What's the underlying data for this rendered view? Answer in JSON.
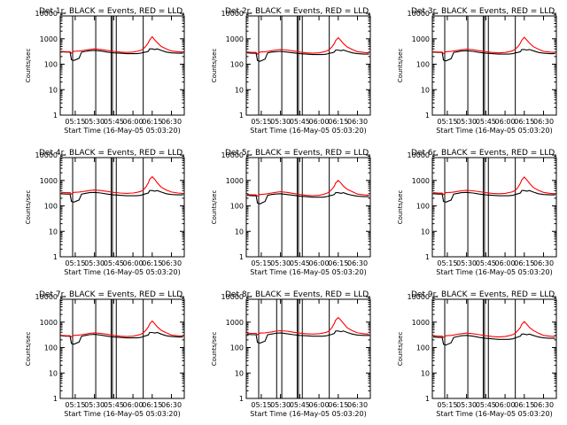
{
  "figure": {
    "ylabel": "Counts/sec",
    "yticks": [
      "1",
      "10",
      "100",
      "1000",
      "10000"
    ],
    "xticks": [
      "05:15",
      "05:30",
      "05:45",
      "06:00",
      "06:15",
      "06:30"
    ],
    "xlabel": "Start Time (16-May-05 05:03:20)",
    "colors": {
      "black_series": "#000000",
      "red_series": "#ff0000",
      "axes": "#000000",
      "background": "#ffffff"
    }
  },
  "chart_data": [
    {
      "type": "line",
      "title": "Det 1r, BLACK = Events, RED = LLD",
      "xlabel": "Start Time (16-May-05 05:03:20)",
      "ylabel": "Counts/sec",
      "yscale": "log",
      "ylim": [
        1,
        15000
      ],
      "xlim": [
        "05:03:20",
        "06:40"
      ],
      "x": [
        "05:04",
        "05:08",
        "05:11",
        "05:12",
        "05:14",
        "05:18",
        "05:20",
        "05:23",
        "05:26",
        "05:30",
        "05:35",
        "05:40",
        "05:45",
        "05:50",
        "05:55",
        "06:00",
        "06:03",
        "06:06",
        "06:08",
        "06:10",
        "06:12",
        "06:13",
        "06:15",
        "06:17",
        "06:19",
        "06:22",
        "06:26",
        "06:30",
        "06:35",
        "06:39"
      ],
      "vlines": [
        "05:13",
        "05:31",
        "05:43",
        "05:44",
        "05:47",
        "06:08"
      ],
      "series": [
        {
          "name": "BLACK",
          "values": [
            310,
            300,
            300,
            150,
            140,
            170,
            300,
            320,
            340,
            350,
            330,
            300,
            280,
            270,
            260,
            260,
            260,
            270,
            290,
            300,
            320,
            400,
            400,
            380,
            400,
            350,
            300,
            280,
            270,
            270
          ]
        },
        {
          "name": "RED",
          "values": [
            320,
            310,
            310,
            270,
            320,
            330,
            340,
            360,
            380,
            400,
            380,
            350,
            320,
            300,
            290,
            300,
            320,
            350,
            400,
            500,
            700,
            900,
            1200,
            900,
            700,
            500,
            400,
            330,
            310,
            300
          ]
        }
      ]
    },
    {
      "type": "line",
      "title": "Det 2r, BLACK = Events, RED = LLD",
      "xlabel": "Start Time (16-May-05 05:03:20)",
      "ylabel": "Counts/sec",
      "yscale": "log",
      "ylim": [
        1,
        15000
      ],
      "xlim": [
        "05:03:20",
        "06:40"
      ],
      "x": [
        "05:04",
        "05:08",
        "05:11",
        "05:12",
        "05:14",
        "05:18",
        "05:20",
        "05:23",
        "05:26",
        "05:30",
        "05:35",
        "05:40",
        "05:45",
        "05:50",
        "05:55",
        "06:00",
        "06:03",
        "06:06",
        "06:08",
        "06:10",
        "06:12",
        "06:13",
        "06:15",
        "06:17",
        "06:19",
        "06:22",
        "06:26",
        "06:30",
        "06:35",
        "06:39"
      ],
      "vlines": [
        "05:13",
        "05:31",
        "05:43",
        "05:44",
        "05:47",
        "06:08"
      ],
      "series": [
        {
          "name": "BLACK",
          "values": [
            280,
            270,
            270,
            140,
            130,
            160,
            280,
            300,
            310,
            320,
            300,
            280,
            260,
            250,
            240,
            240,
            240,
            250,
            270,
            280,
            300,
            360,
            360,
            340,
            360,
            320,
            280,
            260,
            250,
            250
          ]
        },
        {
          "name": "RED",
          "values": [
            300,
            290,
            290,
            250,
            300,
            310,
            320,
            340,
            360,
            380,
            360,
            330,
            300,
            280,
            270,
            280,
            300,
            330,
            380,
            480,
            650,
            850,
            1100,
            850,
            650,
            480,
            380,
            310,
            290,
            280
          ]
        }
      ]
    },
    {
      "type": "line",
      "title": "Det 3r, BLACK = Events, RED = LLD",
      "xlabel": "Start Time (16-May-05 05:03:20)",
      "ylabel": "Counts/sec",
      "yscale": "log",
      "ylim": [
        1,
        15000
      ],
      "xlim": [
        "05:03:20",
        "06:40"
      ],
      "x": [
        "05:04",
        "05:08",
        "05:11",
        "05:12",
        "05:14",
        "05:18",
        "05:20",
        "05:23",
        "05:26",
        "05:30",
        "05:35",
        "05:40",
        "05:45",
        "05:50",
        "05:55",
        "06:00",
        "06:03",
        "06:06",
        "06:08",
        "06:10",
        "06:12",
        "06:13",
        "06:15",
        "06:17",
        "06:19",
        "06:22",
        "06:26",
        "06:30",
        "06:35",
        "06:39"
      ],
      "vlines": [
        "05:13",
        "05:31",
        "05:43",
        "05:44",
        "05:47",
        "06:08"
      ],
      "series": [
        {
          "name": "BLACK",
          "values": [
            300,
            290,
            290,
            145,
            135,
            165,
            290,
            310,
            330,
            340,
            320,
            290,
            270,
            260,
            250,
            250,
            250,
            260,
            280,
            290,
            310,
            380,
            380,
            360,
            380,
            340,
            290,
            270,
            260,
            260
          ]
        },
        {
          "name": "RED",
          "values": [
            310,
            300,
            300,
            260,
            310,
            320,
            330,
            350,
            370,
            390,
            370,
            340,
            310,
            290,
            280,
            290,
            310,
            340,
            390,
            490,
            680,
            880,
            1150,
            880,
            680,
            490,
            390,
            320,
            300,
            290
          ]
        }
      ]
    },
    {
      "type": "line",
      "title": "Det 4r, BLACK = Events, RED = LLD",
      "xlabel": "Start Time (16-May-05 05:03:20)",
      "ylabel": "Counts/sec",
      "yscale": "log",
      "ylim": [
        1,
        15000
      ],
      "xlim": [
        "05:03:20",
        "06:40"
      ],
      "x": [
        "05:04",
        "05:08",
        "05:11",
        "05:12",
        "05:14",
        "05:18",
        "05:20",
        "05:23",
        "05:26",
        "05:30",
        "05:35",
        "05:40",
        "05:45",
        "05:50",
        "05:55",
        "06:00",
        "06:03",
        "06:06",
        "06:08",
        "06:10",
        "06:12",
        "06:13",
        "06:15",
        "06:17",
        "06:19",
        "06:22",
        "06:26",
        "06:30",
        "06:35",
        "06:39"
      ],
      "vlines": [
        "05:13",
        "05:31",
        "05:43",
        "05:44",
        "05:47",
        "06:08"
      ],
      "series": [
        {
          "name": "BLACK",
          "values": [
            300,
            290,
            290,
            150,
            140,
            170,
            290,
            310,
            330,
            340,
            320,
            290,
            270,
            260,
            250,
            250,
            250,
            260,
            280,
            300,
            320,
            400,
            400,
            380,
            400,
            350,
            300,
            280,
            270,
            270
          ]
        },
        {
          "name": "RED",
          "values": [
            340,
            330,
            330,
            290,
            340,
            350,
            360,
            380,
            400,
            420,
            400,
            370,
            340,
            320,
            310,
            320,
            340,
            370,
            420,
            550,
            800,
            1100,
            1400,
            1100,
            800,
            550,
            420,
            350,
            320,
            310
          ]
        }
      ]
    },
    {
      "type": "line",
      "title": "Det 5r, BLACK = Events, RED = LLD",
      "xlabel": "Start Time (16-May-05 05:03:20)",
      "ylabel": "Counts/sec",
      "yscale": "log",
      "ylim": [
        1,
        15000
      ],
      "xlim": [
        "05:03:20",
        "06:40"
      ],
      "x": [
        "05:04",
        "05:08",
        "05:11",
        "05:12",
        "05:14",
        "05:18",
        "05:20",
        "05:23",
        "05:26",
        "05:30",
        "05:35",
        "05:40",
        "05:45",
        "05:50",
        "05:55",
        "06:00",
        "06:03",
        "06:06",
        "06:08",
        "06:10",
        "06:12",
        "06:13",
        "06:15",
        "06:17",
        "06:19",
        "06:22",
        "06:26",
        "06:30",
        "06:35",
        "06:39"
      ],
      "vlines": [
        "05:13",
        "05:31",
        "05:43",
        "05:44",
        "05:47",
        "06:08"
      ],
      "series": [
        {
          "name": "BLACK",
          "values": [
            260,
            250,
            250,
            130,
            120,
            150,
            260,
            280,
            290,
            300,
            280,
            260,
            240,
            230,
            220,
            220,
            220,
            230,
            250,
            260,
            280,
            330,
            330,
            310,
            330,
            290,
            260,
            240,
            230,
            230
          ]
        },
        {
          "name": "RED",
          "values": [
            280,
            270,
            270,
            240,
            280,
            290,
            300,
            320,
            340,
            360,
            340,
            310,
            280,
            260,
            250,
            260,
            280,
            310,
            360,
            450,
            600,
            800,
            1000,
            800,
            600,
            450,
            360,
            290,
            270,
            260
          ]
        }
      ]
    },
    {
      "type": "line",
      "title": "Det 6r, BLACK = Events, RED = LLD",
      "xlabel": "Start Time (16-May-05 05:03:20)",
      "ylabel": "Counts/sec",
      "yscale": "log",
      "ylim": [
        1,
        15000
      ],
      "xlim": [
        "05:03:20",
        "06:40"
      ],
      "x": [
        "05:04",
        "05:08",
        "05:11",
        "05:12",
        "05:14",
        "05:18",
        "05:20",
        "05:23",
        "05:26",
        "05:30",
        "05:35",
        "05:40",
        "05:45",
        "05:50",
        "05:55",
        "06:00",
        "06:03",
        "06:06",
        "06:08",
        "06:10",
        "06:12",
        "06:13",
        "06:15",
        "06:17",
        "06:19",
        "06:22",
        "06:26",
        "06:30",
        "06:35",
        "06:39"
      ],
      "vlines": [
        "05:13",
        "05:31",
        "05:43",
        "05:44",
        "05:47",
        "06:08"
      ],
      "series": [
        {
          "name": "BLACK",
          "values": [
            300,
            290,
            290,
            150,
            140,
            170,
            290,
            310,
            330,
            340,
            320,
            290,
            270,
            260,
            250,
            250,
            250,
            260,
            280,
            300,
            320,
            400,
            400,
            380,
            400,
            350,
            300,
            280,
            270,
            270
          ]
        },
        {
          "name": "RED",
          "values": [
            330,
            320,
            320,
            280,
            330,
            340,
            350,
            370,
            390,
            410,
            390,
            360,
            330,
            310,
            300,
            310,
            330,
            360,
            410,
            530,
            780,
            1050,
            1350,
            1050,
            780,
            530,
            410,
            340,
            310,
            300
          ]
        }
      ]
    },
    {
      "type": "line",
      "title": "Det 7r, BLACK = Events, RED = LLD",
      "xlabel": "Start Time (16-May-05 05:03:20)",
      "ylabel": "Counts/sec",
      "yscale": "log",
      "ylim": [
        1,
        15000
      ],
      "xlim": [
        "05:03:20",
        "06:40"
      ],
      "x": [
        "05:04",
        "05:08",
        "05:11",
        "05:12",
        "05:14",
        "05:18",
        "05:20",
        "05:23",
        "05:26",
        "05:30",
        "05:35",
        "05:40",
        "05:45",
        "05:50",
        "05:55",
        "06:00",
        "06:03",
        "06:06",
        "06:08",
        "06:10",
        "06:12",
        "06:13",
        "06:15",
        "06:17",
        "06:19",
        "06:22",
        "06:26",
        "06:30",
        "06:35",
        "06:39"
      ],
      "vlines": [
        "05:13",
        "05:31",
        "05:43",
        "05:44",
        "05:47",
        "06:08"
      ],
      "series": [
        {
          "name": "BLACK",
          "values": [
            290,
            280,
            280,
            145,
            135,
            165,
            280,
            300,
            320,
            330,
            310,
            280,
            260,
            250,
            240,
            240,
            240,
            250,
            270,
            290,
            310,
            390,
            390,
            370,
            390,
            340,
            290,
            270,
            260,
            260
          ]
        },
        {
          "name": "RED",
          "values": [
            300,
            290,
            290,
            260,
            300,
            310,
            320,
            340,
            360,
            380,
            360,
            330,
            300,
            280,
            270,
            280,
            300,
            330,
            380,
            480,
            650,
            850,
            1100,
            850,
            650,
            480,
            380,
            310,
            290,
            280
          ]
        }
      ]
    },
    {
      "type": "line",
      "title": "Det 8r, BLACK = Events, RED = LLD",
      "xlabel": "Start Time (16-May-05 05:03:20)",
      "ylabel": "Counts/sec",
      "yscale": "log",
      "ylim": [
        1,
        15000
      ],
      "xlim": [
        "05:03:20",
        "06:40"
      ],
      "x": [
        "05:04",
        "05:08",
        "05:11",
        "05:12",
        "05:14",
        "05:18",
        "05:20",
        "05:23",
        "05:26",
        "05:30",
        "05:35",
        "05:40",
        "05:45",
        "05:50",
        "05:55",
        "06:00",
        "06:03",
        "06:06",
        "06:08",
        "06:10",
        "06:12",
        "06:13",
        "06:15",
        "06:17",
        "06:19",
        "06:22",
        "06:26",
        "06:30",
        "06:35",
        "06:39"
      ],
      "vlines": [
        "05:13",
        "05:27",
        "05:31",
        "05:43",
        "05:44",
        "05:47",
        "06:08"
      ],
      "series": [
        {
          "name": "BLACK",
          "values": [
            330,
            320,
            320,
            160,
            150,
            180,
            320,
            340,
            360,
            380,
            350,
            320,
            300,
            290,
            280,
            280,
            280,
            290,
            310,
            330,
            360,
            450,
            450,
            420,
            450,
            390,
            340,
            310,
            300,
            300
          ]
        },
        {
          "name": "RED",
          "values": [
            370,
            360,
            360,
            320,
            370,
            380,
            390,
            410,
            440,
            460,
            440,
            400,
            370,
            350,
            340,
            350,
            370,
            400,
            460,
            600,
            900,
            1200,
            1500,
            1200,
            900,
            600,
            460,
            380,
            350,
            340
          ]
        }
      ]
    },
    {
      "type": "line",
      "title": "Det 9r, BLACK = Events, RED = LLD",
      "xlabel": "Start Time (16-May-05 05:03:20)",
      "ylabel": "Counts/sec",
      "yscale": "log",
      "ylim": [
        1,
        15000
      ],
      "xlim": [
        "05:03:20",
        "06:40"
      ],
      "x": [
        "05:04",
        "05:08",
        "05:11",
        "05:12",
        "05:14",
        "05:18",
        "05:20",
        "05:23",
        "05:26",
        "05:30",
        "05:35",
        "05:40",
        "05:45",
        "05:50",
        "05:55",
        "06:00",
        "06:03",
        "06:06",
        "06:08",
        "06:10",
        "06:12",
        "06:13",
        "06:15",
        "06:17",
        "06:19",
        "06:22",
        "06:26",
        "06:30",
        "06:35",
        "06:39"
      ],
      "vlines": [
        "05:13",
        "05:31",
        "05:43",
        "05:44",
        "05:47",
        "06:08"
      ],
      "series": [
        {
          "name": "BLACK",
          "values": [
            260,
            250,
            250,
            135,
            125,
            155,
            250,
            270,
            290,
            300,
            280,
            250,
            230,
            220,
            210,
            210,
            210,
            220,
            240,
            260,
            280,
            340,
            340,
            320,
            340,
            300,
            260,
            240,
            230,
            230
          ]
        },
        {
          "name": "RED",
          "values": [
            290,
            280,
            280,
            250,
            290,
            300,
            310,
            330,
            350,
            370,
            350,
            320,
            290,
            270,
            260,
            270,
            290,
            320,
            370,
            470,
            620,
            820,
            1050,
            820,
            620,
            470,
            370,
            300,
            280,
            270
          ]
        }
      ]
    }
  ]
}
